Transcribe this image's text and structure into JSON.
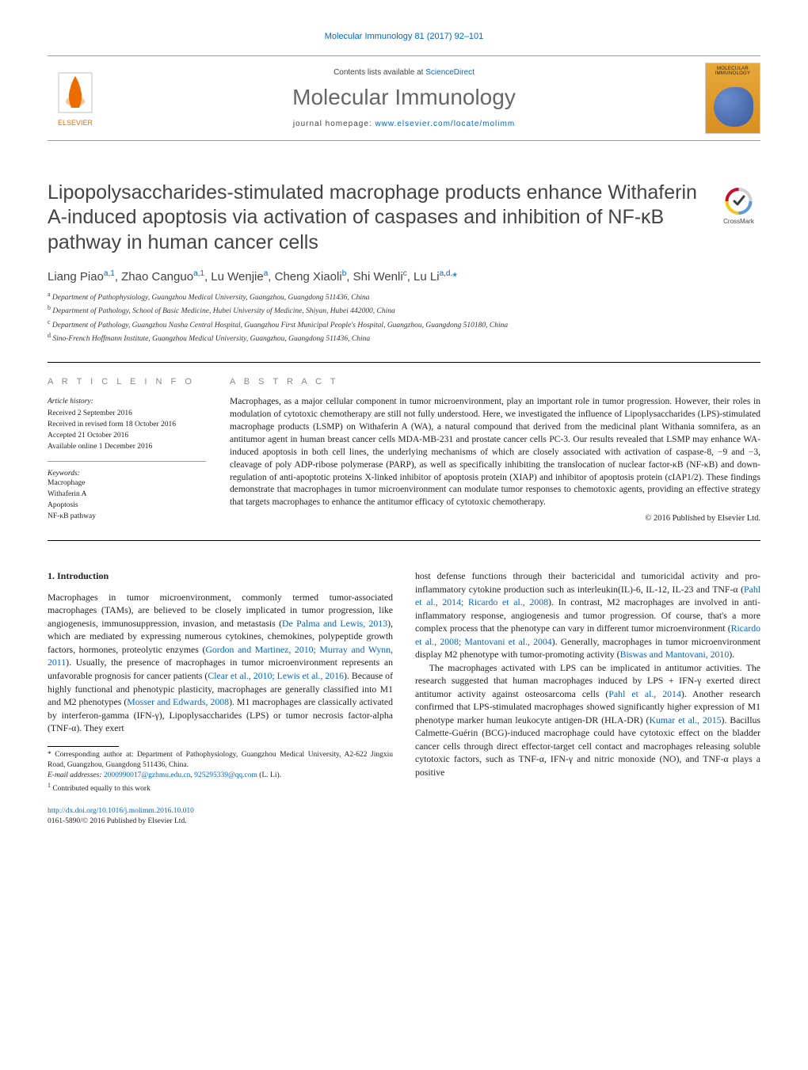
{
  "journal_ref": "Molecular Immunology 81 (2017) 92–101",
  "header": {
    "contents_prefix": "Contents lists available at ",
    "contents_link": "ScienceDirect",
    "journal_title": "Molecular Immunology",
    "homepage_prefix": "journal homepage: ",
    "homepage_link": "www.elsevier.com/locate/molimm"
  },
  "elsevier": {
    "tree_fill": "#ed6c00",
    "label": "ELSEVIER"
  },
  "crossmark": {
    "label": "CrossMark",
    "ring_fill": "#c8102e"
  },
  "title": "Lipopolysaccharides-stimulated macrophage products enhance Withaferin A-induced apoptosis via activation of caspases and inhibition of NF-κB pathway in human cancer cells",
  "authors_html": "Liang Piao<sup>a,1</sup>, Zhao Canguo<sup>a,1</sup>, Lu Wenjie<sup>a</sup>, Cheng Xiaoli<sup>b</sup>, Shi Wenli<sup>c</sup>, Lu Li<sup>a,d,</sup><span class=\"star\">*</span>",
  "affiliations": [
    {
      "key": "a",
      "text": "Department of Pathophysiology, Guangzhou Medical University, Guangzhou, Guangdong 511436, China"
    },
    {
      "key": "b",
      "text": "Department of Pathology, School of Basic Medicine, Hubei University of Medicine, Shiyan, Hubei 442000, China"
    },
    {
      "key": "c",
      "text": "Department of Pathology, Guangzhou Nasha Central Hospital, Guangzhou First Municipal People's Hospital, Guangzhou, Guangdong 510180, China"
    },
    {
      "key": "d",
      "text": "Sino-French Hoffmann Institute, Guangzhou Medical University, Guangzhou, Guangdong 511436, China"
    }
  ],
  "article_info_heading": "A R T I C L E   I N F O",
  "abstract_heading": "A B S T R A C T",
  "history": {
    "label": "Article history:",
    "received": "Received 2 September 2016",
    "revised": "Received in revised form 18 October 2016",
    "accepted": "Accepted 21 October 2016",
    "online": "Available online 1 December 2016"
  },
  "keywords_label": "Keywords:",
  "keywords": [
    "Macrophage",
    "Withaferin A",
    "Apoptosis",
    "NF-κB pathway"
  ],
  "abstract": "Macrophages, as a major cellular component in tumor microenvironment, play an important role in tumor progression. However, their roles in modulation of cytotoxic chemotherapy are still not fully understood. Here, we investigated the influence of Lipoplysaccharides (LPS)-stimulated macrophage products (LSMP) on Withaferin A (WA), a natural compound that derived from the medicinal plant Withania somnifera, as an antitumor agent in human breast cancer cells MDA-MB-231 and prostate cancer cells PC-3. Our results revealed that LSMP may enhance WA-induced apoptosis in both cell lines, the underlying mechanisms of which are closely associated with activation of caspase-8, −9 and −3, cleavage of poly ADP-ribose polymerase (PARP), as well as specifically inhibiting the translocation of nuclear factor-κB (NF-κB) and down-regulation of anti-apoptotic proteins X-linked inhibitor of apoptosis protein (XIAP) and inhibitor of apoptosis protein (cIAP1/2). These findings demonstrate that macrophages in tumor microenvironment can modulate tumor responses to chemotoxic agents, providing an effective strategy that targets macrophages to enhance the antitumor efficacy of cytotoxic chemotherapy.",
  "copyright": "© 2016 Published by Elsevier Ltd.",
  "section1": {
    "heading": "1. Introduction",
    "p1a": "Macrophages in tumor microenvironment, commonly termed tumor-associated macrophages (TAMs), are believed to be closely implicated in tumor progression, like angiogenesis, immunosuppression, invasion, and metastasis (",
    "p1_ref1": "De Palma and Lewis, 2013",
    "p1b": "), which are mediated by expressing numerous cytokines, chemokines, polypeptide growth factors, hormones, proteolytic enzymes (",
    "p1_ref2": "Gordon and Martinez, 2010; Murray and Wynn, 2011",
    "p1c": "). Usually, the presence of macrophages in tumor microenvironment represents an unfavorable prognosis for cancer patients (",
    "p1_ref3": "Clear et al., 2010; Lewis et al., 2016",
    "p1d": "). Because of highly functional and phenotypic plasticity, macrophages are generally classified into M1 and M2 phenotypes (",
    "p1_ref4": "Mosser and Edwards, 2008",
    "p1e": "). M1 macrophages are classically activated by interferon-gamma (IFN-γ), Lipoplysaccharides (LPS) or tumor necrosis factor-alpha (TNF-α). They exert",
    "p2a": "host defense functions through their bactericidal and tumoricidal activity and pro-inflammatory cytokine production such as interleukin(IL)-6, IL-12, IL-23 and TNF-α (",
    "p2_ref1": "Pahl et al., 2014; Ricardo et al., 2008",
    "p2b": "). In contrast, M2 macrophages are involved in anti-inflammatory response, angiogenesis and tumor progression. Of course, that's a more complex process that the phenotype can vary in different tumor microenvironment (",
    "p2_ref2": "Ricardo et al., 2008; Mantovani et al., 2004",
    "p2c": "). Generally, macrophages in tumor microenvironment display M2 phenotype with tumor-promoting activity (",
    "p2_ref3": "Biswas and Mantovani, 2010",
    "p2d": ").",
    "p3a": "The macrophages activated with LPS can be implicated in antitumor activities. The research suggested that human macrophages induced by LPS + IFN-γ exerted direct antitumor activity against osteosarcoma cells (",
    "p3_ref1": "Pahl et al., 2014",
    "p3b": "). Another research confirmed that LPS-stimulated macrophages showed significantly higher expression of M1 phenotype marker human leukocyte antigen-DR (HLA-DR) (",
    "p3_ref2": "Kumar et al., 2015",
    "p3c": "). Bacillus Calmette-Guérin (BCG)-induced macrophage could have cytotoxic effect on the bladder cancer cells through direct effector-target cell contact and macrophages releasing soluble cytotoxic factors, such as TNF-α, IFN-γ and nitric monoxide (NO), and TNF-α plays a positive"
  },
  "footnotes": {
    "corresponding": "Corresponding author at: Department of Pathophysiology, Guangzhou Medical University, A2-622 Jingxiu Road, Guangzhou, Guangdong 511436, China.",
    "email_label": "E-mail addresses: ",
    "email1": "2000990017@gzhmu.edu.cn",
    "email_sep": ", ",
    "email2": "925295339@qq.com",
    "email_tail": " (L. Li).",
    "equal": "Contributed equally to this work"
  },
  "doi": {
    "url": "http://dx.doi.org/10.1016/j.molimm.2016.10.010",
    "issn": "0161-5890/© 2016 Published by Elsevier Ltd."
  },
  "colors": {
    "link": "#0066cc",
    "text": "#1a1a1a",
    "title_gray": "#666666",
    "meta_gray": "#888888",
    "rule": "#999999"
  }
}
